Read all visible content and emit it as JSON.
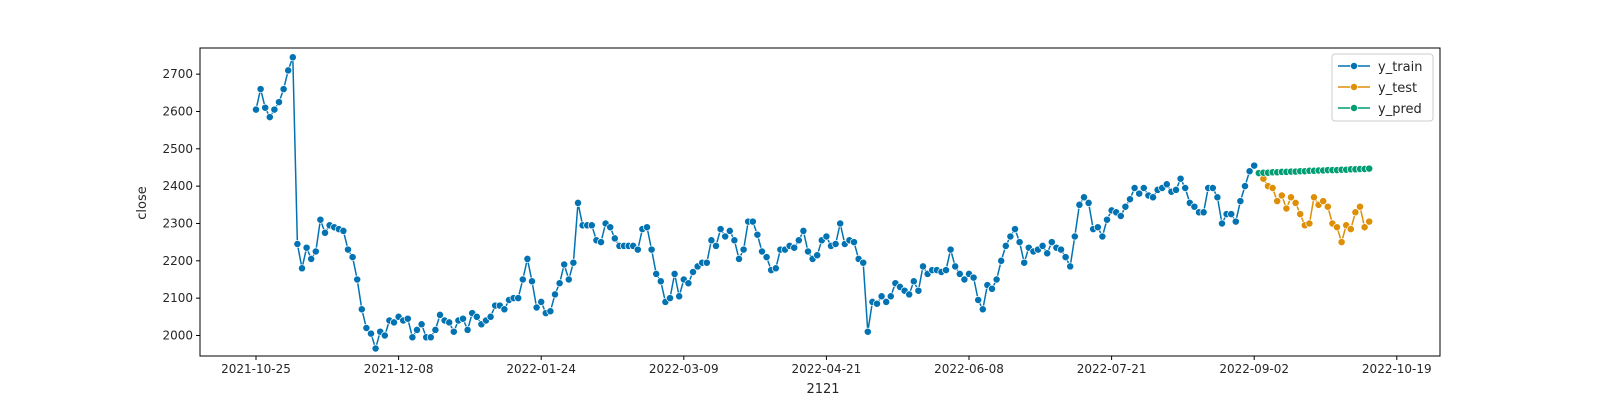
{
  "chart_data": {
    "type": "line",
    "title": "",
    "xlabel": "2121",
    "ylabel": "close",
    "ylim": [
      1945,
      2770
    ],
    "grid": false,
    "legend_position": "top-right",
    "y_ticks": [
      2000,
      2100,
      2200,
      2300,
      2400,
      2500,
      2600,
      2700
    ],
    "x_ticks": [
      "2021-10-25",
      "2021-12-08",
      "2022-01-24",
      "2022-03-09",
      "2022-04-21",
      "2022-06-08",
      "2022-07-21",
      "2022-09-02",
      "2022-10-19"
    ],
    "series": [
      {
        "name": "y_train",
        "color": "#0173b2",
        "values": [
          2605,
          2660,
          2610,
          2585,
          2605,
          2625,
          2660,
          2710,
          2745,
          2245,
          2180,
          2235,
          2205,
          2225,
          2310,
          2275,
          2295,
          2290,
          2285,
          2280,
          2230,
          2210,
          2150,
          2070,
          2020,
          2005,
          1965,
          2010,
          2000,
          2040,
          2035,
          2050,
          2040,
          2045,
          1995,
          2015,
          2030,
          1995,
          1995,
          2015,
          2055,
          2040,
          2035,
          2010,
          2040,
          2045,
          2015,
          2060,
          2050,
          2030,
          2040,
          2050,
          2080,
          2080,
          2070,
          2095,
          2100,
          2100,
          2150,
          2205,
          2145,
          2075,
          2090,
          2060,
          2065,
          2110,
          2140,
          2190,
          2150,
          2195,
          2355,
          2295,
          2295,
          2295,
          2255,
          2250,
          2300,
          2290,
          2260,
          2240,
          2240,
          2240,
          2240,
          2230,
          2285,
          2290,
          2230,
          2165,
          2145,
          2090,
          2100,
          2165,
          2105,
          2150,
          2140,
          2170,
          2185,
          2195,
          2195,
          2255,
          2240,
          2285,
          2265,
          2280,
          2255,
          2205,
          2230,
          2305,
          2305,
          2270,
          2225,
          2210,
          2175,
          2180,
          2230,
          2230,
          2240,
          2235,
          2255,
          2280,
          2225,
          2205,
          2215,
          2255,
          2265,
          2240,
          2245,
          2300,
          2245,
          2255,
          2250,
          2205,
          2195,
          2010,
          2090,
          2085,
          2105,
          2090,
          2105,
          2140,
          2130,
          2120,
          2110,
          2145,
          2120,
          2185,
          2165,
          2175,
          2175,
          2170,
          2175,
          2230,
          2185,
          2165,
          2150,
          2165,
          2155,
          2095,
          2070,
          2135,
          2125,
          2150,
          2200,
          2240,
          2265,
          2285,
          2250,
          2195,
          2235,
          2225,
          2230,
          2240,
          2220,
          2250,
          2235,
          2230,
          2210,
          2185,
          2265,
          2350,
          2370,
          2355,
          2285,
          2290,
          2265,
          2310,
          2335,
          2330,
          2320,
          2345,
          2365,
          2395,
          2380,
          2395,
          2375,
          2370,
          2390,
          2395,
          2405,
          2385,
          2390,
          2420,
          2395,
          2355,
          2345,
          2330,
          2330,
          2395,
          2395,
          2370,
          2300,
          2325,
          2325,
          2305,
          2360,
          2400,
          2440,
          2455
        ]
      },
      {
        "name": "y_test",
        "color": "#de8f05",
        "values": [
          2435,
          2420,
          2400,
          2395,
          2360,
          2375,
          2340,
          2370,
          2355,
          2325,
          2295,
          2300,
          2370,
          2350,
          2360,
          2345,
          2300,
          2290,
          2250,
          2295,
          2285,
          2330,
          2345,
          2290,
          2305
        ]
      },
      {
        "name": "y_pred",
        "color": "#029e73",
        "values": [
          2435,
          2436,
          2436,
          2437,
          2437,
          2438,
          2438,
          2439,
          2439,
          2440,
          2440,
          2441,
          2441,
          2442,
          2442,
          2443,
          2443,
          2443,
          2444,
          2444,
          2445,
          2445,
          2446,
          2446,
          2447
        ]
      }
    ]
  }
}
